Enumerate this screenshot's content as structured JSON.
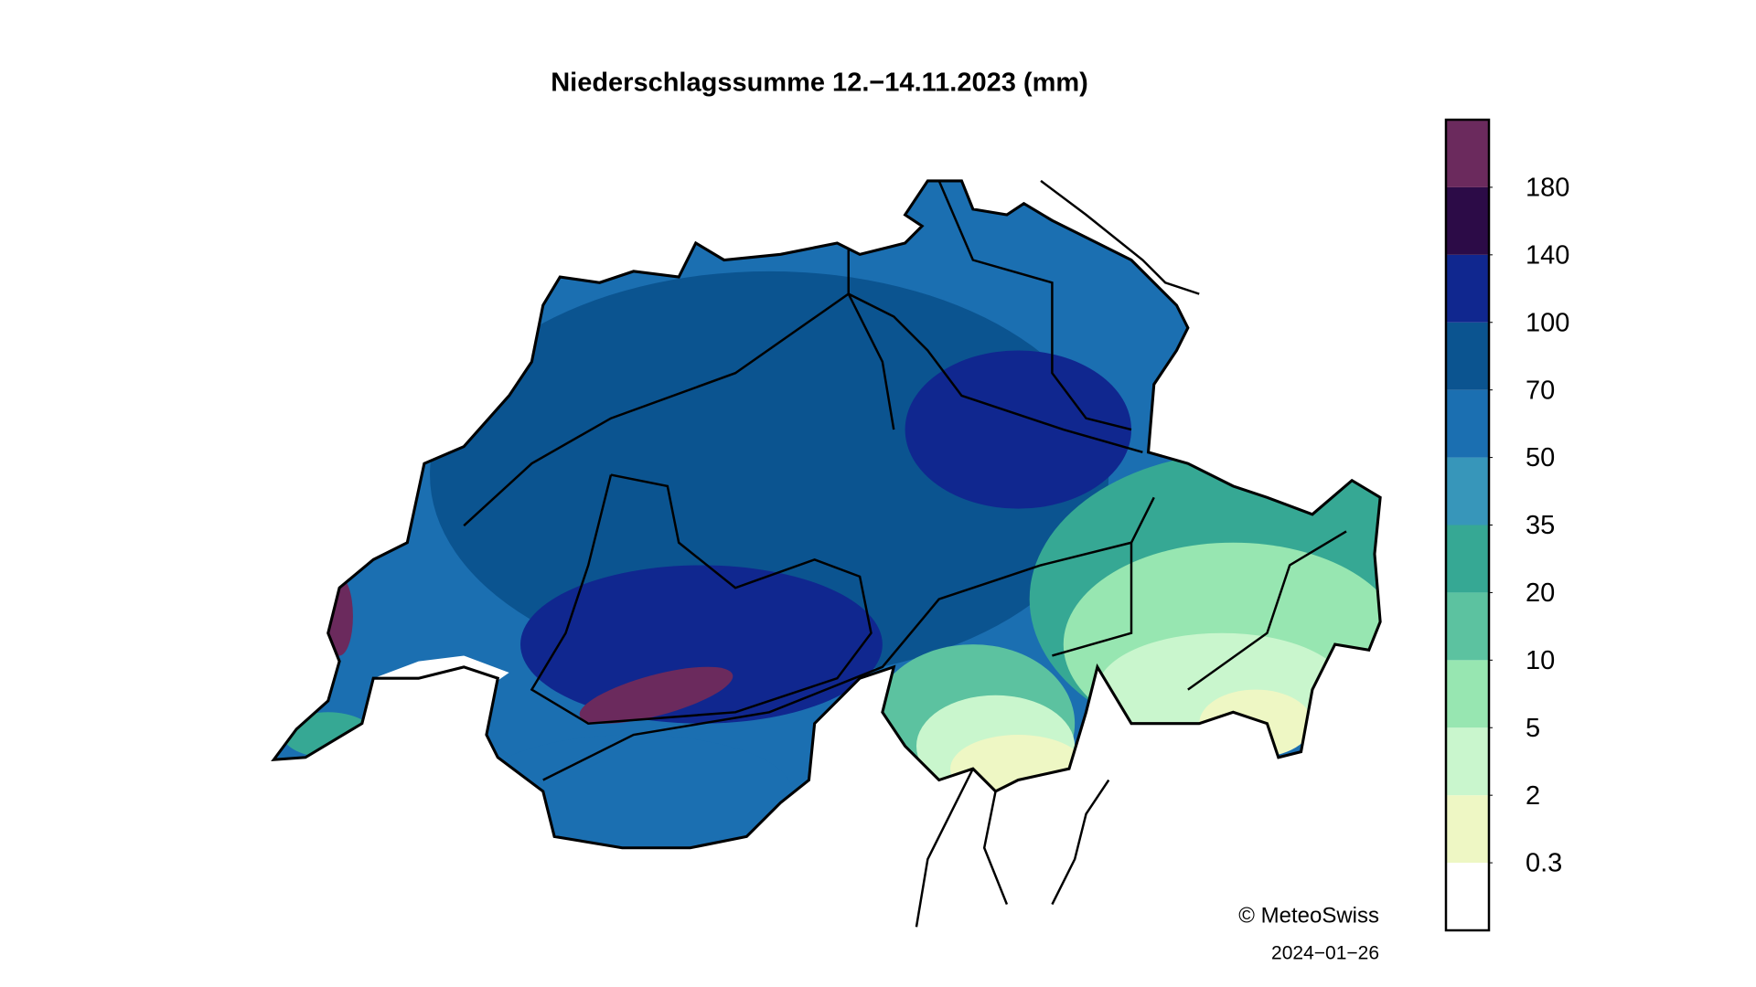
{
  "title": "Niederschlagssumme 12.−14.11.2023 (mm)",
  "colorbar": {
    "ticks": [
      0.3,
      2,
      5,
      10,
      20,
      35,
      50,
      70,
      100,
      140,
      180
    ],
    "colors": [
      "#ffffff",
      "#eef7c4",
      "#c9f6cd",
      "#97e6b1",
      "#5cc2a0",
      "#36a894",
      "#3796ba",
      "#1b6fb1",
      "#0b5490",
      "#10278f",
      "#2c0b47",
      "#6b2a5d"
    ]
  },
  "credit": "© MeteoSwiss",
  "date": "2024−01−26"
}
